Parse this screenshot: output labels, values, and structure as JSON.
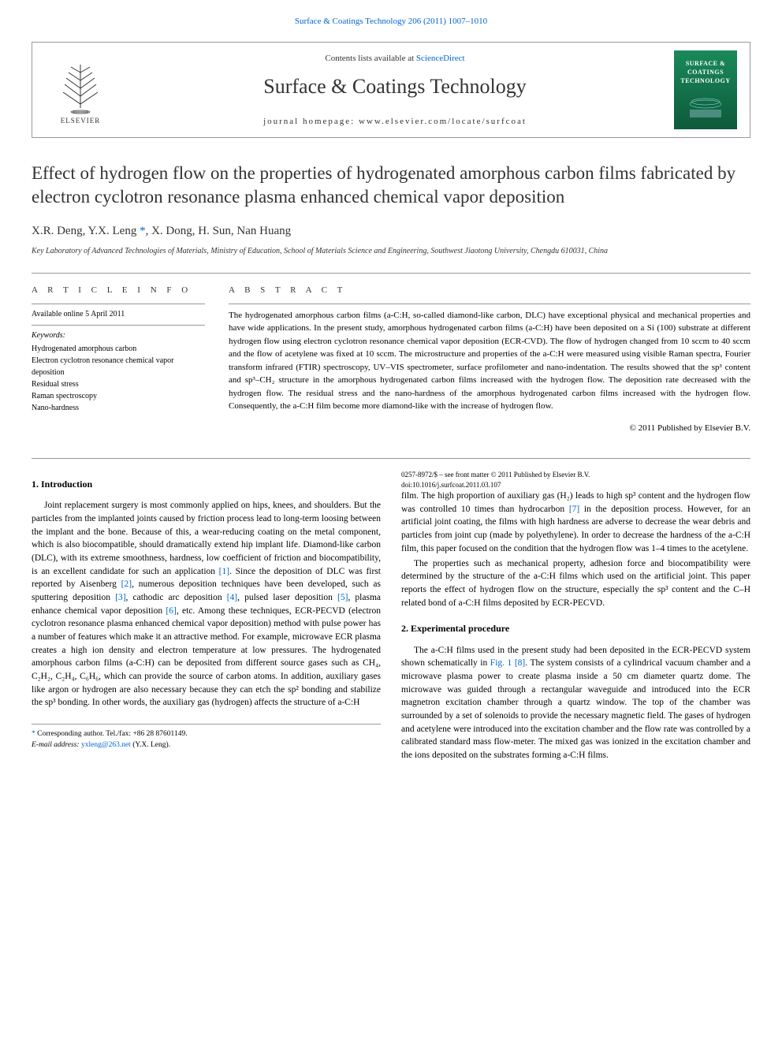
{
  "top_link": "Surface & Coatings Technology 206 (2011) 1007–1010",
  "header": {
    "publisher_logo_text": "ELSEVIER",
    "contents_prefix": "Contents lists available at ",
    "contents_link": "ScienceDirect",
    "journal_name": "Surface & Coatings Technology",
    "homepage_prefix": "journal homepage: ",
    "homepage_url": "www.elsevier.com/locate/surfcoat",
    "cover_title": "SURFACE & COATINGS TECHNOLOGY"
  },
  "title": "Effect of hydrogen flow on the properties of hydrogenated amorphous carbon films fabricated by electron cyclotron resonance plasma enhanced chemical vapor deposition",
  "authors_html": "X.R. Deng, Y.X. Leng <span class='corr-mark'>*</span>, X. Dong, H. Sun, Nan Huang",
  "affiliation": "Key Laboratory of Advanced Technologies of Materials, Ministry of Education, School of Materials Science and Engineering, Southwest Jiaotong University, Chengdu 610031, China",
  "article_info": {
    "heading": "A R T I C L E   I N F O",
    "available": "Available online 5 April 2011",
    "keywords_label": "Keywords:",
    "keywords": [
      "Hydrogenated amorphous carbon",
      "Electron cyclotron resonance chemical vapor deposition",
      "Residual stress",
      "Raman spectroscopy",
      "Nano-hardness"
    ]
  },
  "abstract": {
    "heading": "A B S T R A C T",
    "text": "The hydrogenated amorphous carbon films (a-C:H, so-called diamond-like carbon, DLC) have exceptional physical and mechanical properties and have wide applications. In the present study, amorphous hydrogenated carbon films (a-C:H) have been deposited on a Si (100) substrate at different hydrogen flow using electron cyclotron resonance chemical vapor deposition (ECR-CVD). The flow of hydrogen changed from 10 sccm to 40 sccm and the flow of acetylene was fixed at 10 sccm. The microstructure and properties of the a-C:H were measured using visible Raman spectra, Fourier transform infrared (FTIR) spectroscopy, UV–VIS spectrometer, surface profilometer and nano-indentation. The results showed that the sp³ content and sp³–CH₂ structure in the amorphous hydrogenated carbon films increased with the hydrogen flow. The deposition rate decreased with the hydrogen flow. The residual stress and the nano-hardness of the amorphous hydrogenated carbon films increased with the hydrogen flow. Consequently, the a-C:H film become more diamond-like with the increase of hydrogen flow.",
    "copyright": "© 2011 Published by Elsevier B.V."
  },
  "sections": {
    "intro_heading": "1. Introduction",
    "intro_p1": "Joint replacement surgery is most commonly applied on hips, knees, and shoulders. But the particles from the implanted joints caused by friction process lead to long-term loosing between the implant and the bone. Because of this, a wear-reducing coating on the metal component, which is also biocompatible, should dramatically extend hip implant life. Diamond-like carbon (DLC), with its extreme smoothness, hardness, low coefficient of friction and biocompatibility, is an excellent candidate for such an application [1]. Since the deposition of DLC was first reported by Aisenberg [2], numerous deposition techniques have been developed, such as sputtering deposition [3], cathodic arc deposition [4], pulsed laser deposition [5], plasma enhance chemical vapor deposition [6], etc. Among these techniques, ECR-PECVD (electron cyclotron resonance plasma enhanced chemical vapor deposition) method with pulse power has a number of features which make it an attractive method. For example, microwave ECR plasma creates a high ion density and electron temperature at low pressures. The hydrogenated amorphous carbon films (a-C:H) can be deposited from different source gases such as CH₄, C₂H₂, C₂H₄, C₆H₆, which can provide the source of carbon atoms. In addition, auxiliary gases like argon or hydrogen are also necessary because they can etch the sp² bonding and stabilize the sp³ bonding. In other words, the auxiliary gas (hydrogen) affects the structure of a-C:H",
    "intro_p2": "film. The high proportion of auxiliary gas (H₂) leads to high sp³ content and the hydrogen flow was controlled 10 times than hydrocarbon [7] in the deposition process. However, for an artificial joint coating, the films with high hardness are adverse to decrease the wear debris and particles from joint cup (made by polyethylene). In order to decrease the hardness of the a-C:H film, this paper focused on the condition that the hydrogen flow was 1–4 times to the acetylene.",
    "intro_p3": "The properties such as mechanical property, adhesion force and biocompatibility were determined by the structure of the a-C:H films which used on the artificial joint. This paper reports the effect of hydrogen flow on the structure, especially the sp³ content and the C–H related bond of a-C:H films deposited by ECR-PECVD.",
    "exp_heading": "2. Experimental procedure",
    "exp_p1": "The a-C:H films used in the present study had been deposited in the ECR-PECVD system shown schematically in Fig. 1 [8]. The system consists of a cylindrical vacuum chamber and a microwave plasma power to create plasma inside a 50 cm diameter quartz dome. The microwave was guided through a rectangular waveguide and introduced into the ECR magnetron excitation chamber through a quartz window. The top of the chamber was surrounded by a set of solenoids to provide the necessary magnetic field. The gases of hydrogen and acetylene were introduced into the excitation chamber and the flow rate was controlled by a calibrated standard mass flow-meter. The mixed gas was ionized in the excitation chamber and the ions deposited on the substrates forming a-C:H films."
  },
  "footer": {
    "corr_label": "* ",
    "corr_text": "Corresponding author. Tel./fax: +86 28 87601149.",
    "email_label": "E-mail address: ",
    "email": "yxleng@263.net",
    "email_suffix": " (Y.X. Leng).",
    "issn_line": "0257-8972/$ – see front matter © 2011 Published by Elsevier B.V.",
    "doi_line": "doi:10.1016/j.surfcoat.2011.03.107"
  },
  "colors": {
    "link": "#0066cc",
    "text": "#333333",
    "cover_bg_top": "#1a8a5a",
    "cover_bg_bottom": "#0d5a3a"
  }
}
